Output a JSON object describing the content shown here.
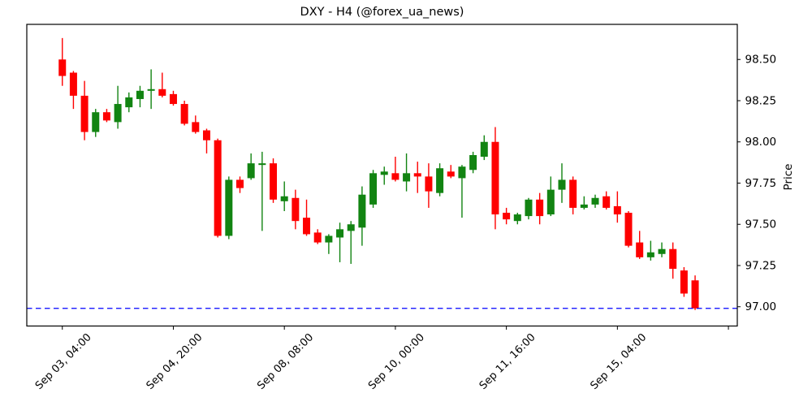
{
  "title": "DXY - H4 (@forex_ua_news)",
  "ylabel": "Price",
  "colors": {
    "up": "#128412",
    "down": "#fe0000",
    "hline": "#0000ff",
    "axis": "#000000",
    "background": "#ffffff"
  },
  "chart_data": {
    "type": "candlestick",
    "symbol": "DXY",
    "timeframe": "H4",
    "source": "@forex_ua_news",
    "title": "DXY - H4 (@forex_ua_news)",
    "xlabel": "",
    "ylabel": "Price",
    "grid": false,
    "legend": false,
    "xlim": [
      -3.2,
      60.8
    ],
    "ylim": [
      96.883,
      98.713
    ],
    "hline": {
      "price": 96.99,
      "style": "dashed",
      "color": "#0000ff"
    },
    "x_ticks": [
      {
        "index": 0,
        "label": "Sep 03, 04:00"
      },
      {
        "index": 10,
        "label": "Sep 04, 20:00"
      },
      {
        "index": 20,
        "label": "Sep 08, 08:00"
      },
      {
        "index": 30,
        "label": "Sep 10, 00:00"
      },
      {
        "index": 40,
        "label": "Sep 11, 16:00"
      },
      {
        "index": 50,
        "label": "Sep 15, 04:00"
      },
      {
        "index": 60,
        "label": ""
      }
    ],
    "y_ticks": [
      {
        "value": 98.5,
        "label": "98.50"
      },
      {
        "value": 98.25,
        "label": "98.25"
      },
      {
        "value": 98.0,
        "label": "98.00"
      },
      {
        "value": 97.75,
        "label": "97.75"
      },
      {
        "value": 97.5,
        "label": "97.50"
      },
      {
        "value": 97.25,
        "label": "97.25"
      },
      {
        "value": 97.0,
        "label": "97.00"
      }
    ],
    "candles": [
      {
        "o": 98.5,
        "h": 98.63,
        "l": 98.34,
        "c": 98.4
      },
      {
        "o": 98.42,
        "h": 98.43,
        "l": 98.2,
        "c": 98.28
      },
      {
        "o": 98.28,
        "h": 98.37,
        "l": 98.01,
        "c": 98.06
      },
      {
        "o": 98.06,
        "h": 98.2,
        "l": 98.03,
        "c": 98.18
      },
      {
        "o": 98.18,
        "h": 98.2,
        "l": 98.12,
        "c": 98.13
      },
      {
        "o": 98.12,
        "h": 98.34,
        "l": 98.08,
        "c": 98.23
      },
      {
        "o": 98.21,
        "h": 98.3,
        "l": 98.18,
        "c": 98.27
      },
      {
        "o": 98.26,
        "h": 98.34,
        "l": 98.21,
        "c": 98.31
      },
      {
        "o": 98.31,
        "h": 98.44,
        "l": 98.2,
        "c": 98.32
      },
      {
        "o": 98.32,
        "h": 98.42,
        "l": 98.27,
        "c": 98.28
      },
      {
        "o": 98.29,
        "h": 98.31,
        "l": 98.22,
        "c": 98.23
      },
      {
        "o": 98.23,
        "h": 98.25,
        "l": 98.1,
        "c": 98.11
      },
      {
        "o": 98.12,
        "h": 98.16,
        "l": 98.05,
        "c": 98.06
      },
      {
        "o": 98.07,
        "h": 98.08,
        "l": 97.93,
        "c": 98.01
      },
      {
        "o": 98.01,
        "h": 98.02,
        "l": 97.42,
        "c": 97.43
      },
      {
        "o": 97.43,
        "h": 97.79,
        "l": 97.41,
        "c": 97.77
      },
      {
        "o": 97.77,
        "h": 97.79,
        "l": 97.69,
        "c": 97.72
      },
      {
        "o": 97.78,
        "h": 97.93,
        "l": 97.77,
        "c": 97.87
      },
      {
        "o": 97.86,
        "h": 97.94,
        "l": 97.46,
        "c": 97.87
      },
      {
        "o": 97.87,
        "h": 97.9,
        "l": 97.63,
        "c": 97.65
      },
      {
        "o": 97.64,
        "h": 97.76,
        "l": 97.58,
        "c": 97.67
      },
      {
        "o": 97.66,
        "h": 97.71,
        "l": 97.47,
        "c": 97.52
      },
      {
        "o": 97.54,
        "h": 97.65,
        "l": 97.43,
        "c": 97.44
      },
      {
        "o": 97.45,
        "h": 97.47,
        "l": 97.38,
        "c": 97.39
      },
      {
        "o": 97.39,
        "h": 97.44,
        "l": 97.32,
        "c": 97.43
      },
      {
        "o": 97.42,
        "h": 97.51,
        "l": 97.27,
        "c": 97.47
      },
      {
        "o": 97.46,
        "h": 97.52,
        "l": 97.26,
        "c": 97.5
      },
      {
        "o": 97.48,
        "h": 97.73,
        "l": 97.37,
        "c": 97.68
      },
      {
        "o": 97.62,
        "h": 97.83,
        "l": 97.6,
        "c": 97.81
      },
      {
        "o": 97.8,
        "h": 97.85,
        "l": 97.74,
        "c": 97.82
      },
      {
        "o": 97.81,
        "h": 97.91,
        "l": 97.76,
        "c": 97.77
      },
      {
        "o": 97.76,
        "h": 97.93,
        "l": 97.7,
        "c": 97.81
      },
      {
        "o": 97.81,
        "h": 97.88,
        "l": 97.69,
        "c": 97.79
      },
      {
        "o": 97.79,
        "h": 97.87,
        "l": 97.6,
        "c": 97.7
      },
      {
        "o": 97.69,
        "h": 97.87,
        "l": 97.67,
        "c": 97.84
      },
      {
        "o": 97.82,
        "h": 97.86,
        "l": 97.78,
        "c": 97.79
      },
      {
        "o": 97.78,
        "h": 97.86,
        "l": 97.54,
        "c": 97.85
      },
      {
        "o": 97.83,
        "h": 97.94,
        "l": 97.81,
        "c": 97.92
      },
      {
        "o": 97.91,
        "h": 98.04,
        "l": 97.89,
        "c": 98.0
      },
      {
        "o": 98.0,
        "h": 98.09,
        "l": 97.47,
        "c": 97.56
      },
      {
        "o": 97.57,
        "h": 97.6,
        "l": 97.5,
        "c": 97.53
      },
      {
        "o": 97.52,
        "h": 97.57,
        "l": 97.5,
        "c": 97.56
      },
      {
        "o": 97.55,
        "h": 97.66,
        "l": 97.53,
        "c": 97.65
      },
      {
        "o": 97.65,
        "h": 97.69,
        "l": 97.5,
        "c": 97.55
      },
      {
        "o": 97.56,
        "h": 97.79,
        "l": 97.55,
        "c": 97.71
      },
      {
        "o": 97.71,
        "h": 97.87,
        "l": 97.63,
        "c": 97.77
      },
      {
        "o": 97.77,
        "h": 97.79,
        "l": 97.56,
        "c": 97.6
      },
      {
        "o": 97.6,
        "h": 97.67,
        "l": 97.59,
        "c": 97.62
      },
      {
        "o": 97.62,
        "h": 97.68,
        "l": 97.6,
        "c": 97.66
      },
      {
        "o": 97.67,
        "h": 97.7,
        "l": 97.59,
        "c": 97.6
      },
      {
        "o": 97.61,
        "h": 97.7,
        "l": 97.51,
        "c": 97.56
      },
      {
        "o": 97.57,
        "h": 97.58,
        "l": 97.36,
        "c": 97.37
      },
      {
        "o": 97.39,
        "h": 97.46,
        "l": 97.29,
        "c": 97.3
      },
      {
        "o": 97.3,
        "h": 97.4,
        "l": 97.28,
        "c": 97.33
      },
      {
        "o": 97.32,
        "h": 97.39,
        "l": 97.3,
        "c": 97.35
      },
      {
        "o": 97.35,
        "h": 97.39,
        "l": 97.17,
        "c": 97.23
      },
      {
        "o": 97.22,
        "h": 97.24,
        "l": 97.06,
        "c": 97.08
      },
      {
        "o": 97.16,
        "h": 97.19,
        "l": 96.98,
        "c": 96.99
      }
    ]
  }
}
